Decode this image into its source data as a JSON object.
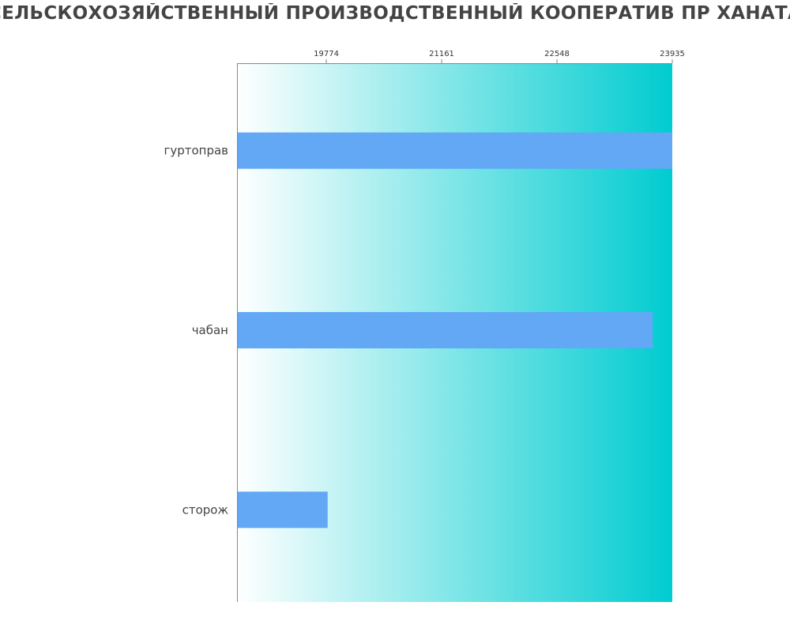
{
  "chart_data": {
    "type": "bar",
    "orientation": "horizontal",
    "title": "СЕЛЬСКОХОЗЯЙСТВЕННЫЙ ПРОИЗВОДСТВЕННЫЙ КООПЕРАТИВ ПР ХАНАТА",
    "xlabel": "",
    "ylabel": "",
    "categories": [
      "гуртоправ",
      "чабан",
      "сторож"
    ],
    "values": [
      23935,
      23700,
      19790
    ],
    "xlim": [
      18700,
      23935
    ],
    "xticks": [
      "19774",
      "21161",
      "22548",
      "23935"
    ],
    "grid": false,
    "legend": "none",
    "colors": {
      "bar": "#62a8f5",
      "background_start": "#ffffff",
      "background_end": "#00ccd0",
      "axis": "#888888"
    }
  }
}
